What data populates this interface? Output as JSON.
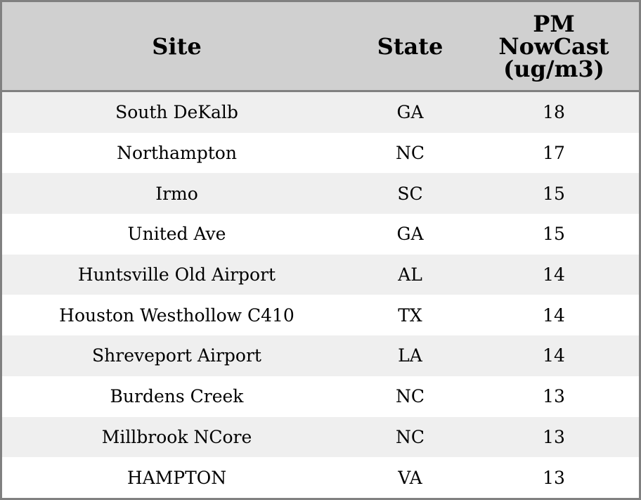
{
  "chart_data": {
    "type": "table",
    "columns": [
      "Site",
      "State",
      "PM NowCast (ug/m3)"
    ],
    "header": {
      "site": "Site",
      "state": "State",
      "pm_line1": "PM",
      "pm_line2": "NowCast",
      "pm_line3": "(ug/m3)"
    },
    "rows": [
      {
        "site": "South DeKalb",
        "state": "GA",
        "pm": "18"
      },
      {
        "site": "Northampton",
        "state": "NC",
        "pm": "17"
      },
      {
        "site": "Irmo",
        "state": "SC",
        "pm": "15"
      },
      {
        "site": "United Ave",
        "state": "GA",
        "pm": "15"
      },
      {
        "site": "Huntsville Old Airport",
        "state": "AL",
        "pm": "14"
      },
      {
        "site": "Houston Westhollow C410",
        "state": "TX",
        "pm": "14"
      },
      {
        "site": "Shreveport Airport",
        "state": "LA",
        "pm": "14"
      },
      {
        "site": "Burdens Creek",
        "state": "NC",
        "pm": "13"
      },
      {
        "site": "Millbrook NCore",
        "state": "NC",
        "pm": "13"
      },
      {
        "site": "HAMPTON",
        "state": "VA",
        "pm": "13"
      }
    ],
    "colors": {
      "header_bg": "#d0d0d0",
      "stripe": "#efefef",
      "border": "#808080"
    }
  }
}
